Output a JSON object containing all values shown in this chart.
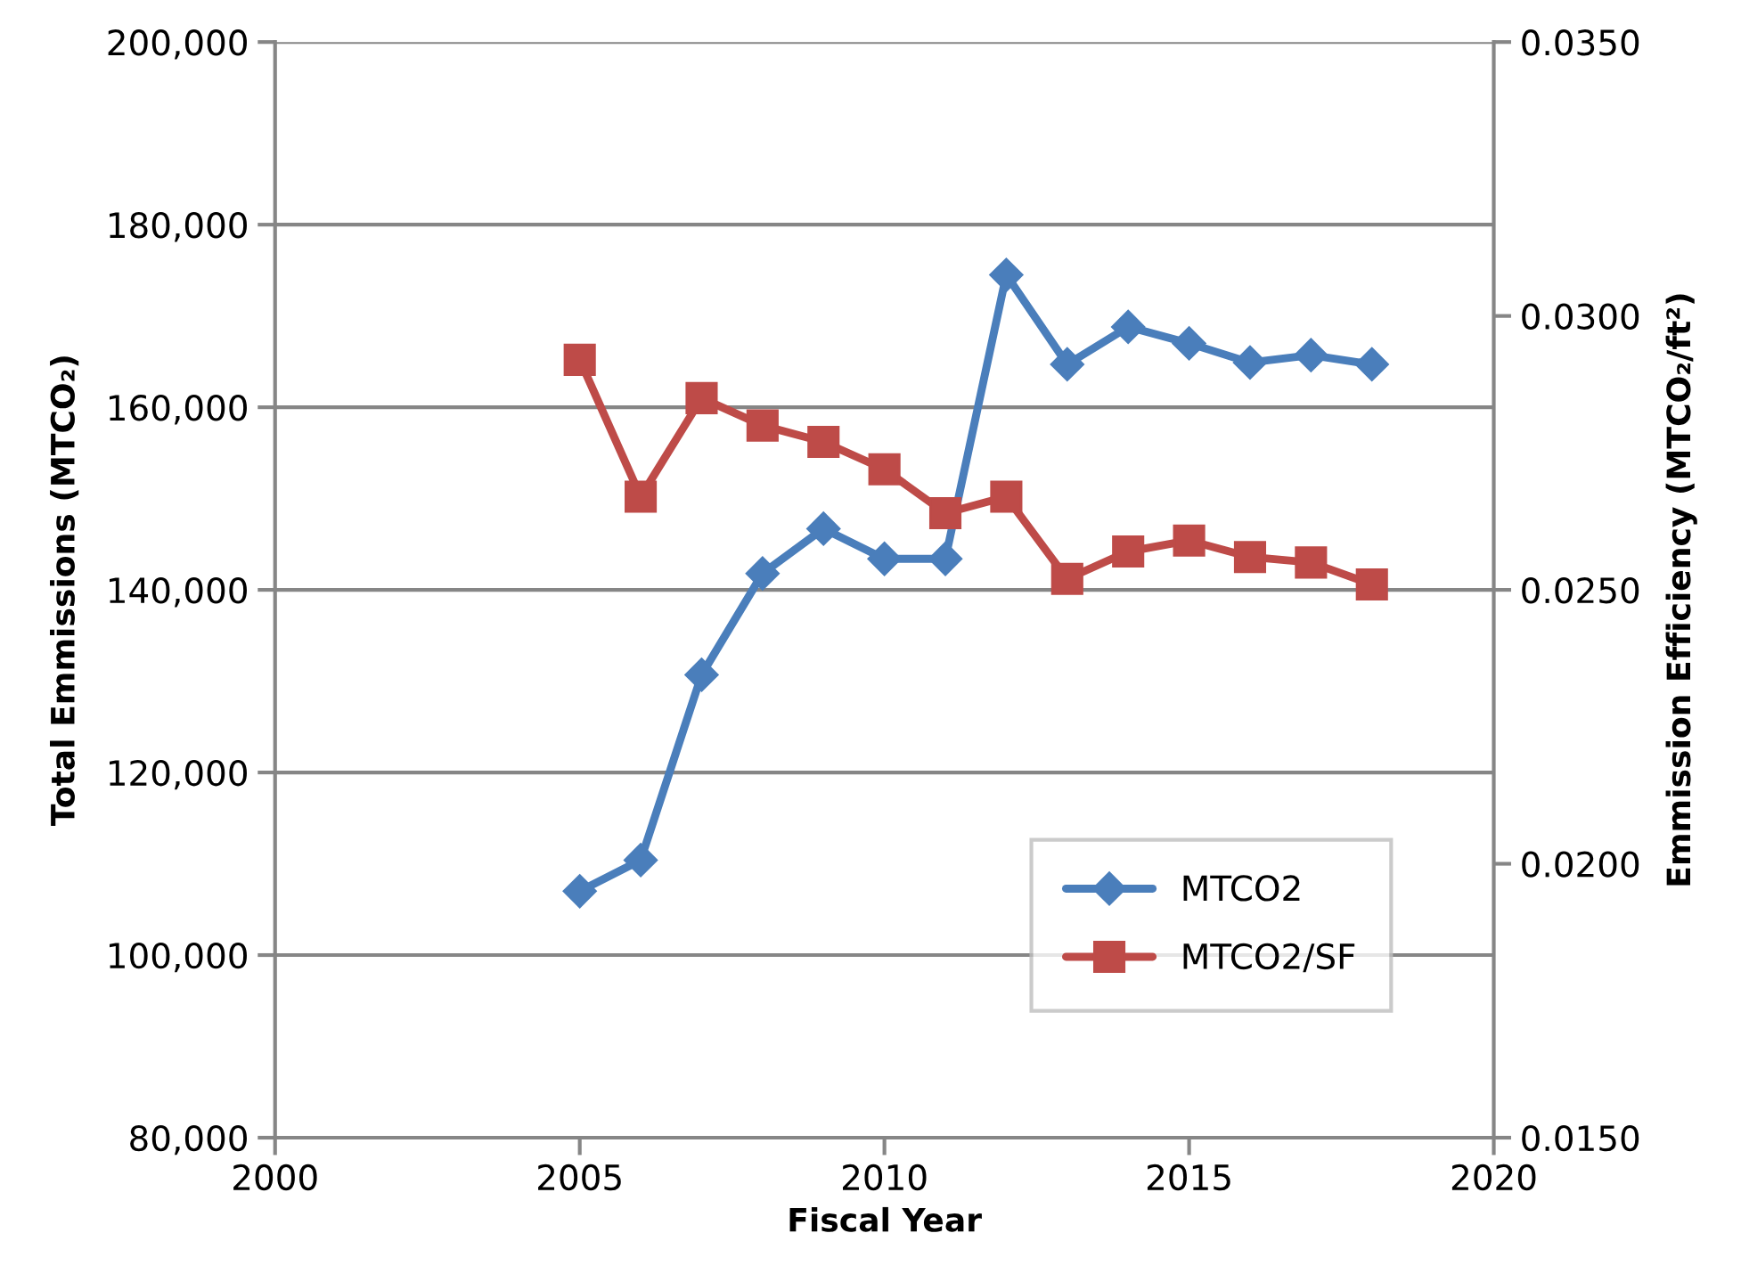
{
  "chart_data": {
    "type": "line",
    "xlabel": "Fiscal Year",
    "ylabel": "Total Emmissions (MTCO₂)",
    "y2label": "Emmission Efficiency (MTCO₂/ft²)",
    "x": [
      2005,
      2006,
      2007,
      2008,
      2009,
      2010,
      2011,
      2012,
      2013,
      2014,
      2015,
      2016,
      2017,
      2018
    ],
    "series": [
      {
        "name": "MTCO2",
        "color": "#4a7ebb",
        "marker": "diamond",
        "values": [
          107000,
          110400,
          130700,
          141800,
          146700,
          143400,
          143400,
          174500,
          164700,
          168800,
          167000,
          164900,
          165700,
          164700
        ]
      },
      {
        "name": "MTCO2/SF",
        "color": "#be4b48",
        "marker": "square",
        "axis": "y2",
        "values": [
          0.0292,
          0.0267,
          0.0285,
          0.028,
          0.0277,
          0.0272,
          0.0264,
          0.0267,
          0.0252,
          0.0257,
          0.0259,
          0.0256,
          0.0255,
          0.0251
        ]
      }
    ],
    "xlim": [
      2000,
      2020
    ],
    "xticks": [
      2000,
      2005,
      2010,
      2015,
      2020
    ],
    "ylim": [
      80000,
      200000
    ],
    "yticks": [
      {
        "value": 80000,
        "label": "80,000"
      },
      {
        "value": 100000,
        "label": "100,000"
      },
      {
        "value": 120000,
        "label": "120,000"
      },
      {
        "value": 140000,
        "label": "140,000"
      },
      {
        "value": 160000,
        "label": "160,000"
      },
      {
        "value": 180000,
        "label": "180,000"
      },
      {
        "value": 200000,
        "label": "200,000"
      }
    ],
    "y2lim": [
      0.015,
      0.035
    ],
    "y2ticks": [
      {
        "value": 0.015,
        "label": "0.0150"
      },
      {
        "value": 0.02,
        "label": "0.0200"
      },
      {
        "value": 0.025,
        "label": "0.0250"
      },
      {
        "value": 0.03,
        "label": "0.0300"
      },
      {
        "value": 0.035,
        "label": "0.0350"
      }
    ],
    "grid": "y",
    "legend": "bottom right",
    "line_style": "solid"
  }
}
